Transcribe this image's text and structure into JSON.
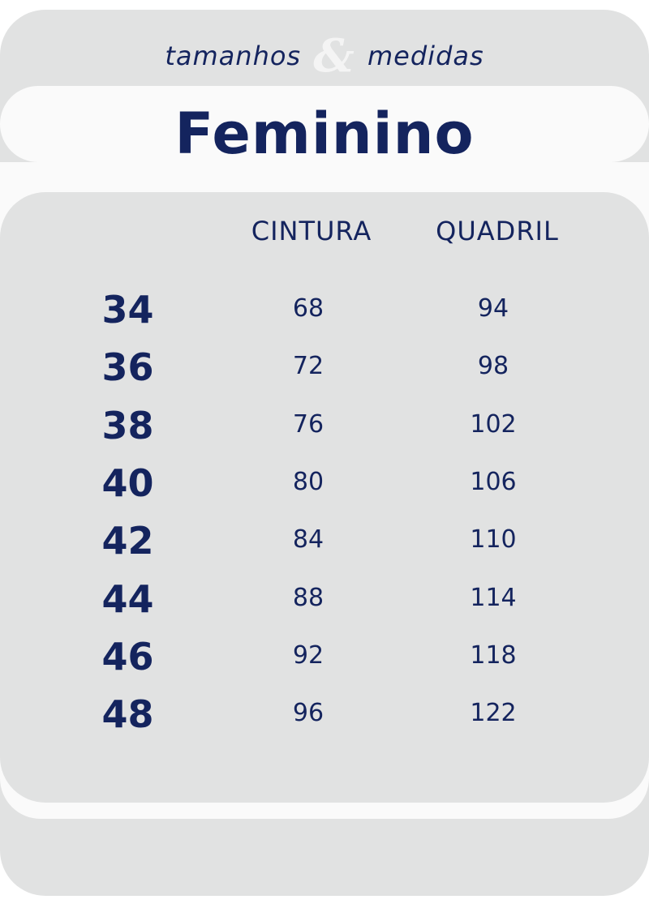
{
  "header": {
    "subtitle_left": "tamanhos",
    "ampersand": "&",
    "subtitle_right": "medidas",
    "title": "Feminino"
  },
  "table": {
    "columns": [
      "CINTURA",
      "QUADRIL"
    ],
    "rows": [
      {
        "size": "34",
        "cintura": "68",
        "quadril": "94"
      },
      {
        "size": "36",
        "cintura": "72",
        "quadril": "98"
      },
      {
        "size": "38",
        "cintura": "76",
        "quadril": "102"
      },
      {
        "size": "40",
        "cintura": "80",
        "quadril": "106"
      },
      {
        "size": "42",
        "cintura": "84",
        "quadril": "110"
      },
      {
        "size": "44",
        "cintura": "88",
        "quadril": "114"
      },
      {
        "size": "46",
        "cintura": "92",
        "quadril": "118"
      },
      {
        "size": "48",
        "cintura": "96",
        "quadril": "122"
      }
    ]
  },
  "colors": {
    "text": "#14245e",
    "panel": "#e1e2e2",
    "highlight": "#fafafa"
  }
}
